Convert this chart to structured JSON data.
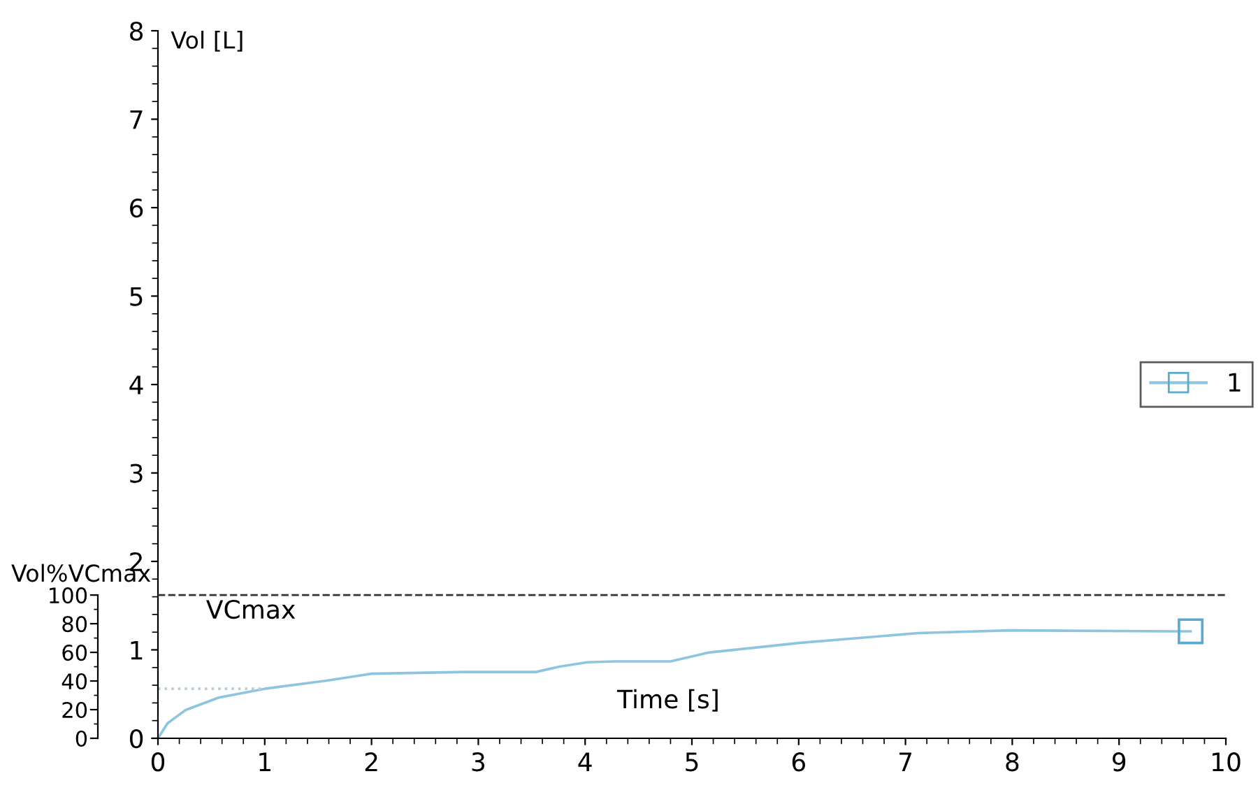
{
  "chart_data": {
    "type": "line",
    "xlabel": "Time [s]",
    "ylabel": "Vol [L]",
    "y2label": "Vol%VCmax",
    "xlim": [
      0,
      10
    ],
    "xticks": [
      0,
      1,
      2,
      3,
      4,
      5,
      6,
      7,
      8,
      9,
      10
    ],
    "ylim": [
      0,
      8
    ],
    "yticks": [
      0,
      1,
      2,
      3,
      4,
      5,
      6,
      7,
      8
    ],
    "y2lim": [
      0,
      494
    ],
    "y2ticks": [
      0,
      20,
      40,
      60,
      80,
      100
    ],
    "grid": false,
    "legend": "right",
    "ref_lines": [
      {
        "axis": "y2",
        "value": 100,
        "label": "VCmax",
        "color": "#333333",
        "line_style": "dashed"
      }
    ],
    "series": [
      {
        "name": "1",
        "color": "#8ec5de",
        "line_style": "solid",
        "x": [
          0,
          0.09,
          0.26,
          0.57,
          1.0,
          1.57,
          2.0,
          2.88,
          3.54,
          3.76,
          4.02,
          4.28,
          4.8,
          5.16,
          6.02,
          7.12,
          7.98,
          9.5,
          9.67
        ],
        "values": [
          0,
          0.17,
          0.32,
          0.46,
          0.56,
          0.65,
          0.73,
          0.75,
          0.75,
          0.81,
          0.86,
          0.87,
          0.87,
          0.97,
          1.08,
          1.19,
          1.22,
          1.21,
          1.21
        ]
      },
      {
        "type": "scatter",
        "color": "#5aa9d0",
        "marker": "square",
        "x": [
          9.67
        ],
        "values": [
          1.21
        ]
      },
      {
        "color": "#b8cdd8",
        "line_style": "dotted",
        "x": [
          0,
          1.0
        ],
        "values": [
          0.56,
          0.56
        ]
      }
    ]
  }
}
